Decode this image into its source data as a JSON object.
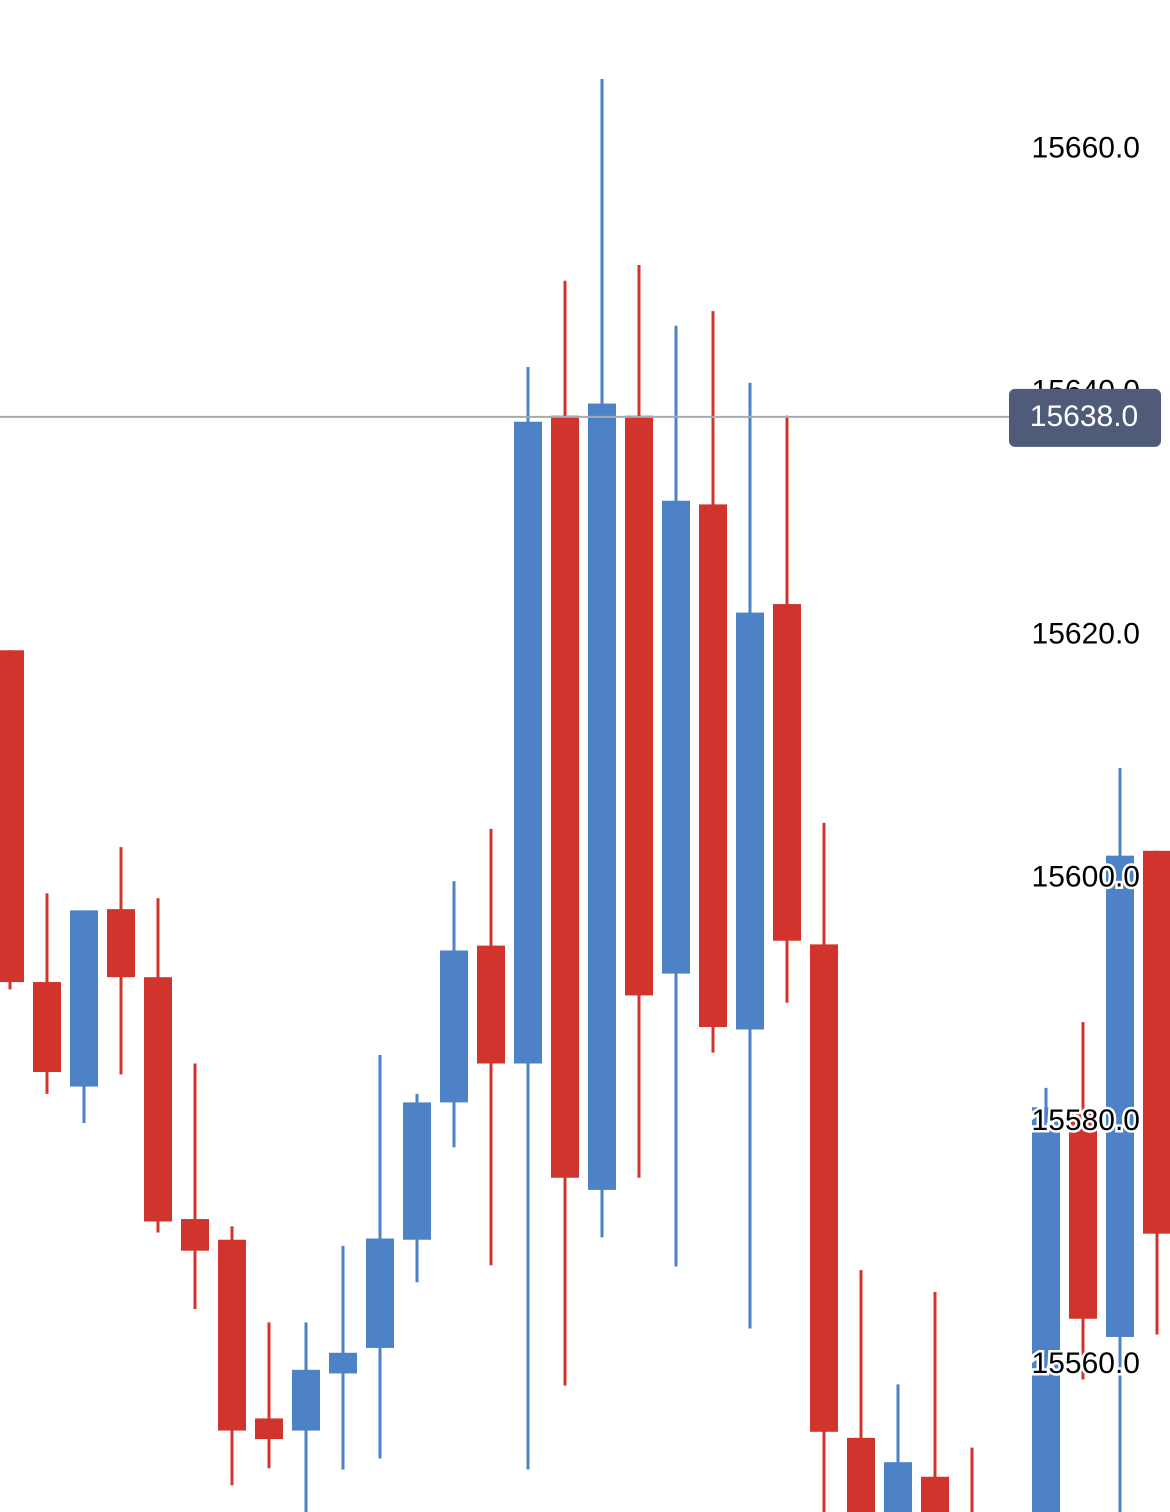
{
  "chart_data": {
    "type": "candlestick",
    "open": [
      15618.8,
      15591.5,
      15582.9,
      15597.5,
      15591.9,
      15572.0,
      15570.3,
      15555.6,
      15554.6,
      15559.3,
      15561.4,
      15570.3,
      15581.6,
      15594.5,
      15584.8,
      15638.1,
      15574.4,
      15638.1,
      15592.2,
      15630.8,
      15587.6,
      15622.6,
      15594.6,
      15554.0,
      15546.0,
      15550.8,
      15547.0,
      null,
      15546.0,
      15581.0,
      15562.3,
      15602.3
    ],
    "high": [
      15618.8,
      15598.8,
      15597.4,
      15602.6,
      15598.4,
      15584.8,
      15571.4,
      15563.5,
      15563.5,
      15569.8,
      15585.5,
      15582.3,
      15599.8,
      15604.1,
      15642.1,
      15649.2,
      15665.8,
      15650.5,
      15645.5,
      15646.7,
      15640.8,
      15638.1,
      15604.6,
      15567.8,
      15558.4,
      15566.0,
      15553.2,
      null,
      15582.8,
      15588.2,
      15609.1,
      15602.3
    ],
    "low": [
      15590.9,
      15582.3,
      15579.9,
      15583.9,
      15570.9,
      15564.6,
      15550.1,
      15551.5,
      15547.0,
      15551.4,
      15552.3,
      15566.8,
      15577.9,
      15568.2,
      15551.4,
      15558.3,
      15570.5,
      15575.4,
      15568.1,
      15585.7,
      15563.0,
      15589.8,
      15547.0,
      15545.0,
      15545.0,
      15545.0,
      15545.0,
      null,
      15545.0,
      15558.8,
      15545.0,
      15562.5
    ],
    "close": [
      15591.5,
      15584.1,
      15597.4,
      15591.9,
      15571.8,
      15569.4,
      15554.6,
      15553.9,
      15559.6,
      15561.0,
      15570.4,
      15581.6,
      15594.1,
      15584.8,
      15637.6,
      15575.4,
      15639.1,
      15590.4,
      15631.1,
      15587.8,
      15621.9,
      15594.9,
      15554.5,
      15546.0,
      15552.0,
      15546.0,
      15546.0,
      null,
      15581.2,
      15563.8,
      15601.9,
      15570.8
    ],
    "up_color": "#4d83c6",
    "down_color": "#d0342c",
    "ylim": [
      15547.9,
      15672.3
    ],
    "yticks": [
      {
        "value": 15560,
        "label": "15560.0"
      },
      {
        "value": 15580,
        "label": "15580.0"
      },
      {
        "value": 15600,
        "label": "15600.0"
      },
      {
        "value": 15620,
        "label": "15620.0"
      },
      {
        "value": 15640,
        "label": "15640.0"
      },
      {
        "value": 15660,
        "label": "15660.0"
      }
    ],
    "crosshair": {
      "value": 15638,
      "label": "15638.0"
    }
  }
}
